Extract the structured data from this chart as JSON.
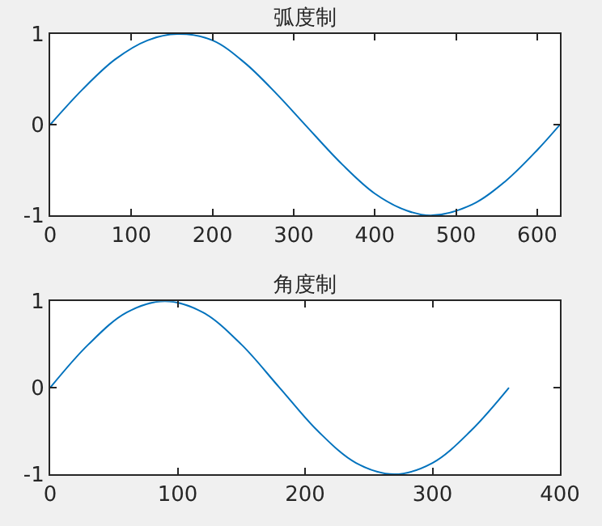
{
  "chart_data": [
    {
      "type": "line",
      "title": "弧度制",
      "x": [
        0,
        40,
        80,
        120,
        157,
        200,
        240,
        280,
        314,
        360,
        400,
        440,
        471,
        520,
        560,
        600,
        628
      ],
      "series": [
        {
          "color": "#0072bd",
          "values": [
            0,
            0.39,
            0.72,
            0.93,
            1,
            0.93,
            0.68,
            0.33,
            0,
            -0.44,
            -0.76,
            -0.95,
            -1,
            -0.88,
            -0.63,
            -0.28,
            0
          ]
        }
      ],
      "xlim": [
        0,
        628
      ],
      "xticks": [
        0,
        100,
        200,
        300,
        400,
        500,
        600
      ],
      "ylim": [
        -1,
        1
      ],
      "yticks": [
        -1,
        0,
        1
      ]
    },
    {
      "type": "line",
      "title": "角度制",
      "x": [
        0,
        30,
        60,
        90,
        120,
        150,
        180,
        210,
        240,
        270,
        300,
        330,
        360
      ],
      "series": [
        {
          "color": "#0072bd",
          "values": [
            0,
            0.5,
            0.87,
            1,
            0.87,
            0.5,
            0,
            -0.5,
            -0.87,
            -1,
            -0.87,
            -0.5,
            0
          ]
        }
      ],
      "xlim": [
        0,
        400
      ],
      "xticks": [
        0,
        100,
        200,
        300,
        400
      ],
      "ylim": [
        -1,
        1
      ],
      "yticks": [
        -1,
        0,
        1
      ]
    }
  ]
}
